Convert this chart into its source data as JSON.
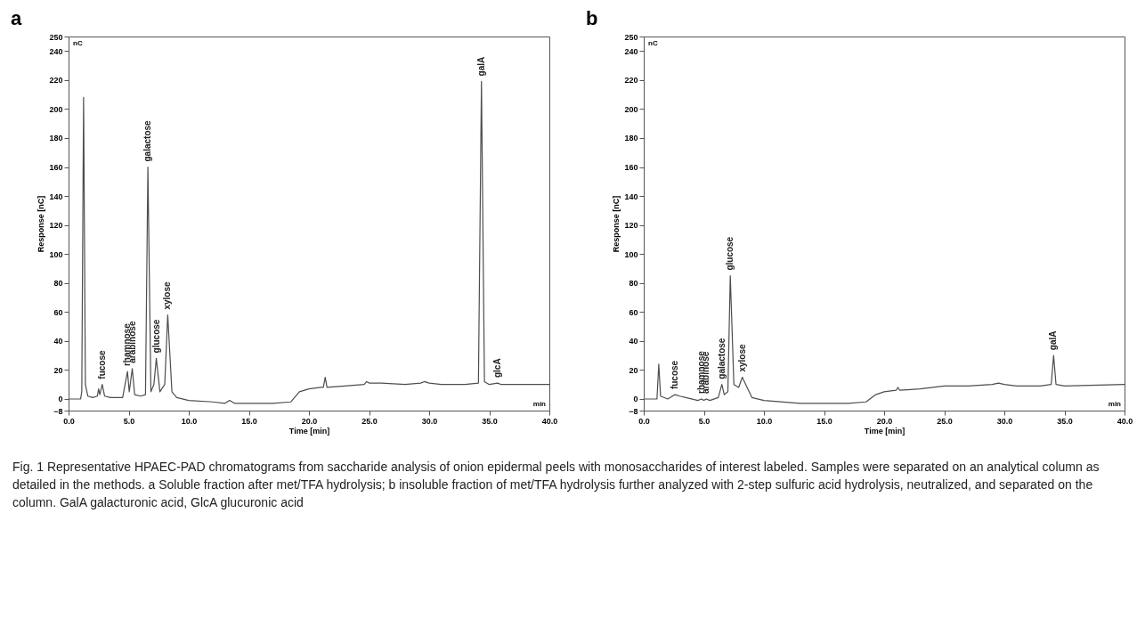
{
  "chart_data": [
    {
      "type": "line",
      "title": "a",
      "xlabel": "Time [min]",
      "ylabel": "Response [nC]",
      "color": "#4d4d4d",
      "x": [
        0,
        1.0,
        1.1,
        1.25,
        1.4,
        1.6,
        2.0,
        2.4,
        2.5,
        2.6,
        2.8,
        3.0,
        3.5,
        4.5,
        4.9,
        5.05,
        5.3,
        5.5,
        6.0,
        6.4,
        6.6,
        6.85,
        7.1,
        7.3,
        7.6,
        8.0,
        8.25,
        8.6,
        9.0,
        10,
        12,
        13,
        13.4,
        13.8,
        15,
        17,
        18.5,
        19.2,
        20,
        21,
        21.2,
        21.35,
        21.5,
        23,
        24.6,
        24.8,
        25,
        26,
        28,
        29.3,
        29.6,
        30,
        31,
        33,
        34.1,
        34.35,
        34.6,
        35,
        35.7,
        36,
        40
      ],
      "values": [
        0,
        0,
        5,
        208,
        10,
        2,
        1,
        2,
        7,
        3,
        10,
        2,
        1,
        1,
        19,
        5,
        21,
        3,
        2,
        3,
        160,
        5,
        10,
        28,
        5,
        10,
        58,
        5,
        1,
        -1,
        -2,
        -3,
        -1,
        -3,
        -3,
        -3,
        -2,
        5,
        7,
        8,
        8,
        15,
        8,
        9,
        10,
        12,
        11,
        11,
        10,
        11,
        12,
        11,
        10,
        10,
        11,
        219,
        12,
        10,
        11,
        10,
        10
      ],
      "xlim": [
        0,
        40
      ],
      "xticks": [
        {
          "value": 0,
          "label": "0.0"
        },
        {
          "value": 5,
          "label": "5.0"
        },
        {
          "value": 10,
          "label": "10.0"
        },
        {
          "value": 15,
          "label": "15.0"
        },
        {
          "value": 20,
          "label": "20.0"
        },
        {
          "value": 25,
          "label": "25.0"
        },
        {
          "value": 30,
          "label": "30.0"
        },
        {
          "value": 35,
          "label": "35.0"
        },
        {
          "value": 40,
          "label": "40.0"
        }
      ],
      "ylim": [
        -8,
        250
      ],
      "yticks": [
        -8,
        0,
        20,
        40,
        60,
        80,
        100,
        120,
        140,
        160,
        180,
        200,
        220,
        240,
        250
      ],
      "annotations": [
        "nC",
        "min",
        {
          "text": "fucose",
          "x": 2.8,
          "y": 10
        },
        {
          "text": "rhamnose",
          "x": 4.9,
          "y": 19
        },
        {
          "text": "arabinose",
          "x": 5.3,
          "y": 21
        },
        {
          "text": "galactose",
          "x": 6.6,
          "y": 160
        },
        {
          "text": "glucose",
          "x": 7.3,
          "y": 28
        },
        {
          "text": "xylose",
          "x": 8.25,
          "y": 58
        },
        {
          "text": "galA",
          "x": 34.35,
          "y": 219
        },
        {
          "text": "glcA",
          "x": 35.7,
          "y": 11
        },
        "Fig. 1 Representative HPAEC-PAD chromatograms from saccharide analysis of onion epidermal peels with monosaccharides of interest labeled. Samples were separated on an analytical column as detailed in the methods. a Soluble fraction after met/TFA hydrolysis; b insoluble fraction of met/TFA hydrolysis further analyzed with 2-step sulfuric acid hydrolysis, neutralized, and separated on the column. GalA galacturonic acid, GlcA glucuronic acid"
      ]
    },
    {
      "type": "line",
      "title": "b",
      "xlabel": "Time [min]",
      "ylabel": "Response [nC]",
      "color": "#4d4d4d",
      "x": [
        0,
        1.1,
        1.25,
        1.4,
        2,
        2.6,
        3,
        3.5,
        4.5,
        4.8,
        5.0,
        5.2,
        5.5,
        6.2,
        6.5,
        6.7,
        7.0,
        7.2,
        7.5,
        7.9,
        8.2,
        8.6,
        9,
        10,
        13,
        15,
        17,
        18.5,
        19.3,
        20,
        21,
        21.15,
        21.3,
        23,
        25,
        27,
        29,
        29.5,
        30,
        31,
        33,
        33.9,
        34.1,
        34.3,
        35,
        40
      ],
      "values": [
        0,
        0,
        24,
        2,
        0,
        3,
        2,
        1,
        -1,
        0,
        -1,
        0,
        -1,
        1,
        10,
        3,
        5,
        85,
        10,
        8,
        15,
        8,
        1,
        -1,
        -3,
        -3,
        -3,
        -2,
        3,
        5,
        6,
        8,
        6,
        7,
        9,
        9,
        10,
        11,
        10,
        9,
        9,
        10,
        30,
        10,
        9,
        10
      ],
      "xlim": [
        0,
        40
      ],
      "xticks": [
        {
          "value": 0,
          "label": "0.0"
        },
        {
          "value": 5,
          "label": "5.0"
        },
        {
          "value": 10,
          "label": "10.0"
        },
        {
          "value": 15,
          "label": "15.0"
        },
        {
          "value": 20,
          "label": "20.0"
        },
        {
          "value": 25,
          "label": "25.0"
        },
        {
          "value": 30,
          "label": "30.0"
        },
        {
          "value": 35,
          "label": "35.0"
        },
        {
          "value": 40,
          "label": "40.0"
        }
      ],
      "ylim": [
        -8,
        250
      ],
      "yticks": [
        -8,
        0,
        20,
        40,
        60,
        80,
        100,
        120,
        140,
        160,
        180,
        200,
        220,
        240,
        250
      ],
      "annotations": [
        "nC",
        "min",
        {
          "text": "fucose",
          "x": 2.6,
          "y": 3
        },
        {
          "text": "rhamnose",
          "x": 4.8,
          "y": 0
        },
        {
          "text": "arabinose",
          "x": 5.2,
          "y": 0
        },
        {
          "text": "galactose",
          "x": 6.5,
          "y": 10
        },
        {
          "text": "glucose",
          "x": 7.2,
          "y": 85
        },
        {
          "text": "xylose",
          "x": 8.2,
          "y": 15
        },
        {
          "text": "galA",
          "x": 34.1,
          "y": 30
        }
      ]
    }
  ]
}
